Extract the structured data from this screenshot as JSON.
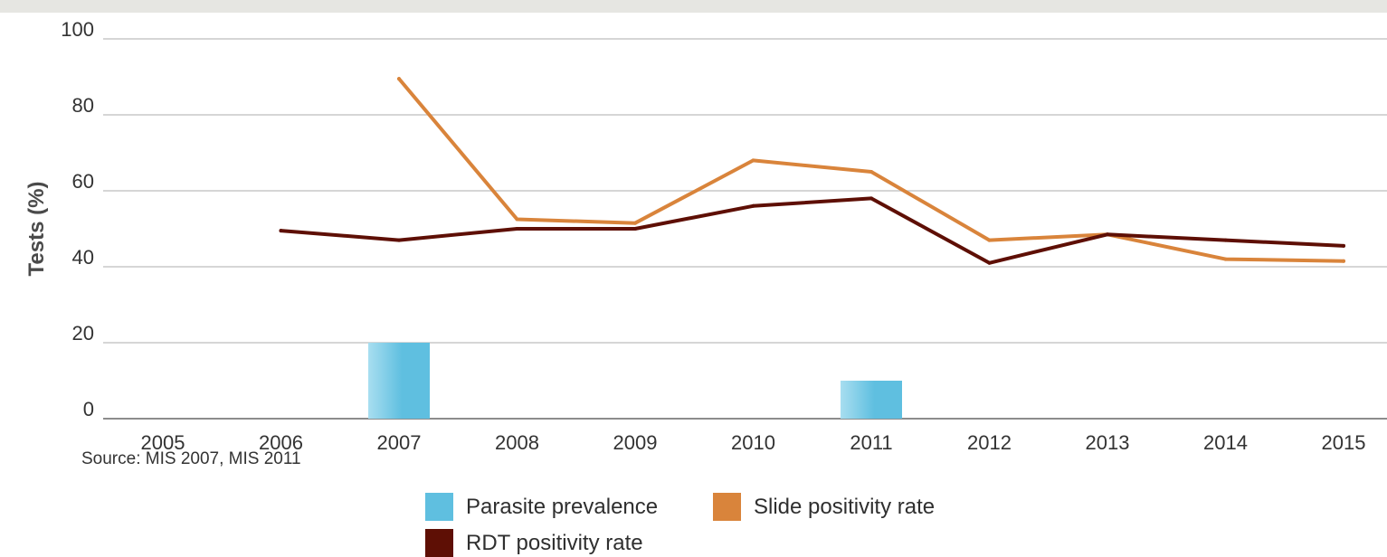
{
  "chart_data": {
    "type": "bar",
    "title": "",
    "xlabel": "",
    "ylabel": "Tests (%)",
    "ylim": [
      0,
      100
    ],
    "yticks": [
      0,
      20,
      40,
      60,
      80,
      100
    ],
    "categories": [
      "2005",
      "2006",
      "2007",
      "2008",
      "2009",
      "2010",
      "2011",
      "2012",
      "2013",
      "2014",
      "2015"
    ],
    "grid": true,
    "legend_position": "bottom",
    "series": [
      {
        "name": "Parasite prevalence",
        "kind": "bar",
        "color": "#5fbfe0",
        "values": [
          null,
          null,
          20,
          null,
          null,
          null,
          10,
          null,
          null,
          null,
          null
        ]
      },
      {
        "name": "Slide positivity rate",
        "kind": "line",
        "color": "#d9843b",
        "values": [
          null,
          null,
          89.5,
          52.5,
          51.5,
          68,
          65,
          47,
          48.5,
          42,
          41.5
        ]
      },
      {
        "name": "RDT positivity rate",
        "kind": "line",
        "color": "#5e0f05",
        "values": [
          null,
          49.5,
          47,
          50,
          50,
          56,
          58,
          41,
          48.5,
          47,
          45.5
        ]
      }
    ]
  },
  "source_note": "Source: MIS 2007, MIS 2011",
  "legend": {
    "parasite": "Parasite prevalence",
    "slide": "Slide positivity rate",
    "rdt": "RDT positivity rate"
  }
}
